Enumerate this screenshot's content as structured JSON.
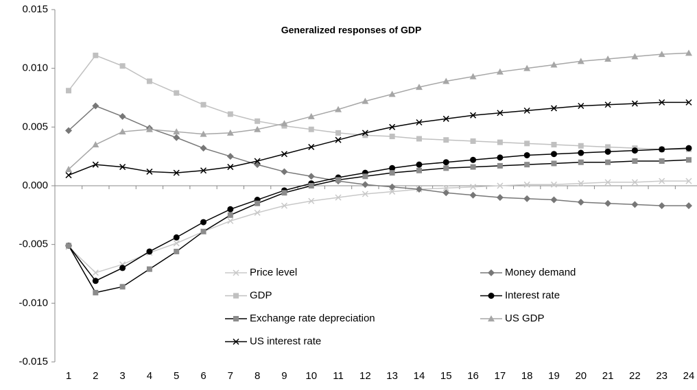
{
  "chart_data": {
    "type": "line",
    "title": "Generalized responses of GDP",
    "categories": [
      "1",
      "2",
      "3",
      "4",
      "5",
      "6",
      "7",
      "8",
      "9",
      "10",
      "11",
      "12",
      "13",
      "14",
      "15",
      "16",
      "17",
      "18",
      "19",
      "20",
      "21",
      "22",
      "23",
      "24"
    ],
    "ylim": [
      -0.015,
      0.015
    ],
    "yticks": [
      {
        "value": -0.015,
        "label": "-0.015"
      },
      {
        "value": -0.01,
        "label": "-0.010"
      },
      {
        "value": -0.005,
        "label": "-0.005"
      },
      {
        "value": 0,
        "label": "0.000"
      },
      {
        "value": 0.005,
        "label": "0.005"
      },
      {
        "value": 0.01,
        "label": "0.010"
      },
      {
        "value": 0.015,
        "label": "0.015"
      }
    ],
    "grid": false,
    "series": [
      {
        "name": "Price level",
        "color": "#c8c8c8",
        "marker": "x",
        "marker_color": "#c8c8c8",
        "values": [
          -0.0052,
          -0.0074,
          -0.0067,
          -0.0057,
          -0.0049,
          -0.0039,
          -0.003,
          -0.0023,
          -0.0017,
          -0.0013,
          -0.001,
          -0.0007,
          -0.0005,
          -0.0003,
          -0.0002,
          -0.0001,
          0.0,
          0.0001,
          0.0001,
          0.0002,
          0.0003,
          0.0003,
          0.0004,
          0.0004
        ]
      },
      {
        "name": "Money demand",
        "color": "#777777",
        "marker": "diamond",
        "marker_color": "#777777",
        "values": [
          0.0047,
          0.0068,
          0.0059,
          0.0049,
          0.0041,
          0.0032,
          0.0025,
          0.0018,
          0.0012,
          0.0008,
          0.0004,
          0.0001,
          -0.0001,
          -0.0003,
          -0.0006,
          -0.0008,
          -0.001,
          -0.0011,
          -0.0012,
          -0.0014,
          -0.0015,
          -0.0016,
          -0.0017,
          -0.0017
        ]
      },
      {
        "name": "GDP",
        "color": "#c0c0c0",
        "marker": "square",
        "marker_color": "#c0c0c0",
        "values": [
          0.0081,
          0.0111,
          0.0102,
          0.0089,
          0.0079,
          0.0069,
          0.0061,
          0.0055,
          0.0051,
          0.0048,
          0.0045,
          0.0043,
          0.0042,
          0.004,
          0.0039,
          0.0038,
          0.0037,
          0.0036,
          0.0035,
          0.0034,
          0.0033,
          0.0032,
          0.0031,
          0.0031
        ]
      },
      {
        "name": "Interest rate",
        "color": "#000000",
        "marker": "circle",
        "marker_color": "#000000",
        "values": [
          -0.0051,
          -0.0081,
          -0.007,
          -0.0056,
          -0.0044,
          -0.0031,
          -0.002,
          -0.0012,
          -0.0004,
          0.0002,
          0.0007,
          0.0011,
          0.0015,
          0.0018,
          0.002,
          0.0022,
          0.0024,
          0.0026,
          0.0027,
          0.0028,
          0.0029,
          0.003,
          0.0031,
          0.0032
        ]
      },
      {
        "name": "Exchange rate depreciation",
        "color": "#000000",
        "marker": "square",
        "marker_color": "#8c8c8c",
        "values": [
          -0.0051,
          -0.0091,
          -0.0086,
          -0.0071,
          -0.0056,
          -0.0039,
          -0.0025,
          -0.0015,
          -0.0006,
          0.0,
          0.0005,
          0.0008,
          0.0011,
          0.0013,
          0.0015,
          0.0016,
          0.0017,
          0.0018,
          0.0019,
          0.002,
          0.002,
          0.0021,
          0.0021,
          0.0022
        ]
      },
      {
        "name": "US GDP",
        "color": "#a6a6a6",
        "marker": "triangle",
        "marker_color": "#a6a6a6",
        "values": [
          0.0014,
          0.0035,
          0.0046,
          0.0048,
          0.0046,
          0.0044,
          0.0045,
          0.0048,
          0.0053,
          0.0059,
          0.0065,
          0.0072,
          0.0078,
          0.0084,
          0.0089,
          0.0093,
          0.0097,
          0.01,
          0.0103,
          0.0106,
          0.0108,
          0.011,
          0.0112,
          0.0113
        ]
      },
      {
        "name": "US interest rate",
        "color": "#000000",
        "marker": "x",
        "marker_color": "#000000",
        "values": [
          0.0009,
          0.0018,
          0.0016,
          0.0012,
          0.0011,
          0.0013,
          0.0016,
          0.0021,
          0.0027,
          0.0033,
          0.0039,
          0.0045,
          0.005,
          0.0054,
          0.0057,
          0.006,
          0.0062,
          0.0064,
          0.0066,
          0.0068,
          0.0069,
          0.007,
          0.0071,
          0.0071
        ]
      }
    ]
  }
}
